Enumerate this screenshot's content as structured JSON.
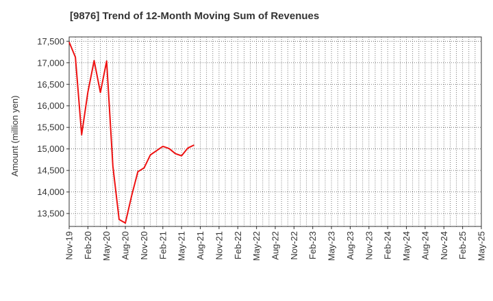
{
  "chart_data": {
    "type": "line",
    "title": "[9876]  Trend of 12-Month Moving Sum of Revenues",
    "xlabel": "",
    "ylabel": "Amount (million yen)",
    "ylim": [
      13200,
      17600
    ],
    "yticks": [
      13500,
      14000,
      14500,
      15000,
      15500,
      16000,
      16500,
      17000,
      17500
    ],
    "ytick_labels": [
      "13,500",
      "14,000",
      "14,500",
      "15,000",
      "15,500",
      "16,000",
      "16,500",
      "17,000",
      "17,500"
    ],
    "xtick_labels": [
      "Nov-19",
      "Feb-20",
      "May-20",
      "Aug-20",
      "Nov-20",
      "Feb-21",
      "May-21",
      "Aug-21",
      "Nov-21",
      "Feb-22",
      "May-22",
      "Aug-22",
      "Nov-22",
      "Feb-23",
      "May-23",
      "Aug-23",
      "Nov-23",
      "Feb-24",
      "May-24",
      "Aug-24",
      "Nov-24",
      "Feb-25",
      "May-25"
    ],
    "grid": true,
    "series": [
      {
        "color": "#ee1111",
        "values": [
          17480,
          17130,
          15330,
          16320,
          17050,
          16310,
          17040,
          14600,
          13360,
          13280,
          13910,
          14470,
          14560,
          14860,
          14960,
          15060,
          15010,
          14890,
          14840,
          15020,
          15090
        ]
      }
    ]
  }
}
